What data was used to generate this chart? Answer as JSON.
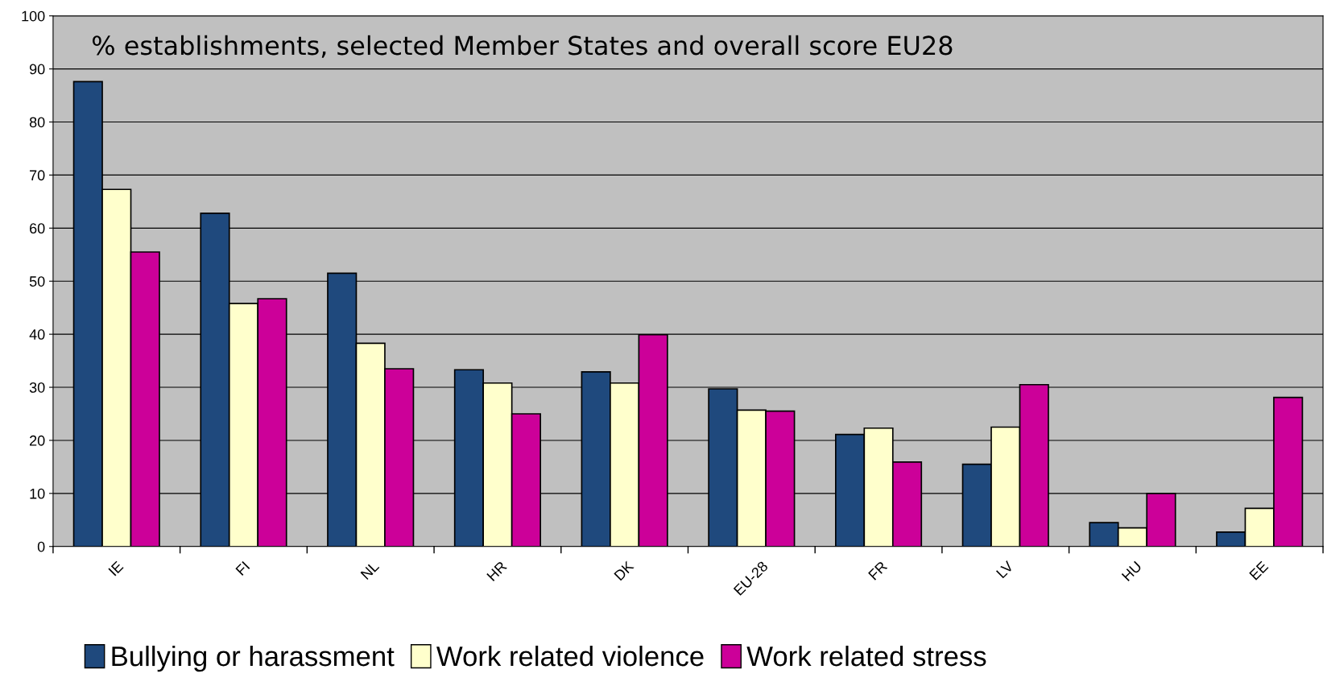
{
  "chart_data": {
    "type": "bar",
    "title": "% establishments, selected Member States and overall score EU28",
    "categories": [
      "IE",
      "FI",
      "NL",
      "HR",
      "DK",
      "EU-28",
      "FR",
      "LV",
      "HU",
      "EE"
    ],
    "series": [
      {
        "name": "Bullying or harassment",
        "color": "#1f497d",
        "values": [
          87.6,
          62.8,
          51.5,
          33.3,
          32.9,
          29.7,
          21.1,
          15.5,
          4.5,
          2.7
        ]
      },
      {
        "name": "Work related violence",
        "color": "#ffffcc",
        "values": [
          67.3,
          45.8,
          38.3,
          30.8,
          30.8,
          25.7,
          22.3,
          22.5,
          3.5,
          7.2
        ]
      },
      {
        "name": "Work related stress",
        "color": "#cc0099",
        "values": [
          55.5,
          46.7,
          33.5,
          25.0,
          39.9,
          25.5,
          15.9,
          30.5,
          10.0,
          28.1
        ]
      }
    ],
    "ylim": [
      0,
      100
    ],
    "yticks": [
      0,
      10,
      20,
      30,
      40,
      50,
      60,
      70,
      80,
      90,
      100
    ],
    "grid": "y",
    "legend": "bottom"
  }
}
